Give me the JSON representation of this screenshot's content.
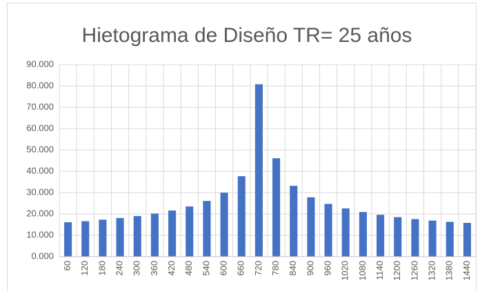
{
  "chart_data": {
    "type": "bar",
    "title": "Hietograma de Diseño TR= 25 años",
    "categories": [
      "60",
      "120",
      "180",
      "240",
      "300",
      "360",
      "420",
      "480",
      "540",
      "600",
      "660",
      "720",
      "780",
      "840",
      "900",
      "960",
      "1020",
      "1080",
      "1140",
      "1200",
      "1260",
      "1320",
      "1380",
      "1440"
    ],
    "values": [
      16.1,
      16.6,
      17.3,
      18.1,
      19.0,
      20.2,
      21.6,
      23.5,
      26.1,
      30.0,
      37.7,
      80.8,
      46.1,
      33.2,
      27.8,
      24.7,
      22.6,
      20.9,
      19.6,
      18.5,
      17.6,
      16.9,
      16.3,
      15.8
    ],
    "color": "#4472c4",
    "ylim": [
      0,
      90
    ],
    "yticks": [
      {
        "value": 0,
        "label": "0.000"
      },
      {
        "value": 10,
        "label": "10.000"
      },
      {
        "value": 20,
        "label": "20.000"
      },
      {
        "value": 30,
        "label": "30.000"
      },
      {
        "value": 40,
        "label": "40.000"
      },
      {
        "value": 50,
        "label": "50.000"
      },
      {
        "value": 60,
        "label": "60.000"
      },
      {
        "value": 70,
        "label": "70.000"
      },
      {
        "value": 80,
        "label": "80.000"
      },
      {
        "value": 90,
        "label": "90.000"
      }
    ],
    "grid": true
  }
}
